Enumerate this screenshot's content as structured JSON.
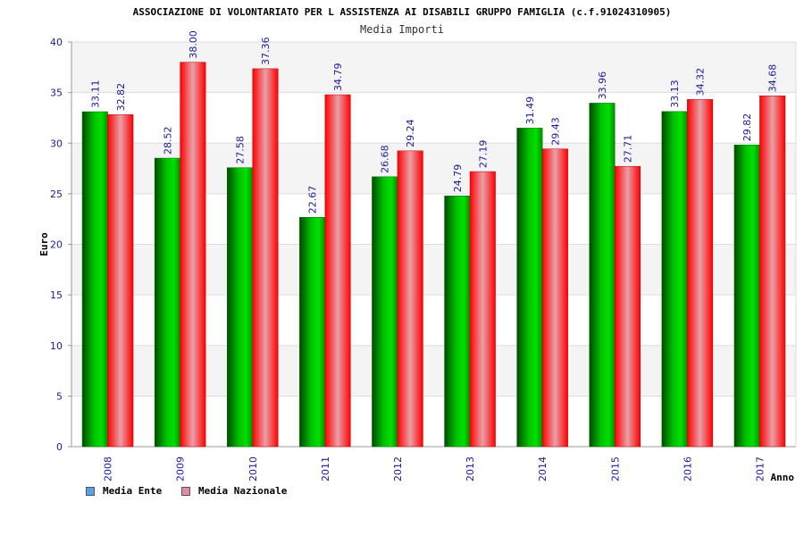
{
  "header": {
    "title": "ASSOCIAZIONE DI VOLONTARIATO PER L ASSISTENZA AI DISABILI GRUPPO FAMIGLIA (c.f.91024310905)",
    "subtitle": "Media Importi"
  },
  "legend": {
    "ente": "Media Ente",
    "nazionale": "Media Nazionale",
    "ente_color": "#5aa0e6",
    "nazionale_color": "#e08ab0"
  },
  "chart_data": {
    "type": "bar",
    "title": "Media Importi",
    "xlabel": "Anno",
    "ylabel": "Euro",
    "ylim": [
      0,
      40
    ],
    "yticks": [
      0,
      5,
      10,
      15,
      20,
      25,
      30,
      35,
      40
    ],
    "categories": [
      "2008",
      "2009",
      "2010",
      "2011",
      "2012",
      "2013",
      "2014",
      "2015",
      "2016",
      "2017"
    ],
    "series": [
      {
        "name": "Media Ente",
        "color": "#00a000",
        "values": [
          33.11,
          28.52,
          27.58,
          22.67,
          26.68,
          24.79,
          31.49,
          33.96,
          33.13,
          29.82
        ],
        "labels": [
          "33.11",
          "28.52",
          "27.58",
          "22.67",
          "26.68",
          "24.79",
          "31.49",
          "33.96",
          "33.13",
          "29.82"
        ]
      },
      {
        "name": "Media Nazionale",
        "color": "#ff0000",
        "values": [
          32.82,
          38.0,
          37.36,
          34.79,
          29.24,
          27.19,
          29.43,
          27.71,
          34.32,
          34.68
        ],
        "labels": [
          "32.82",
          "38.00",
          "37.36",
          "34.79",
          "29.24",
          "27.19",
          "29.43",
          "27.71",
          "34.32",
          "34.68"
        ]
      }
    ]
  }
}
